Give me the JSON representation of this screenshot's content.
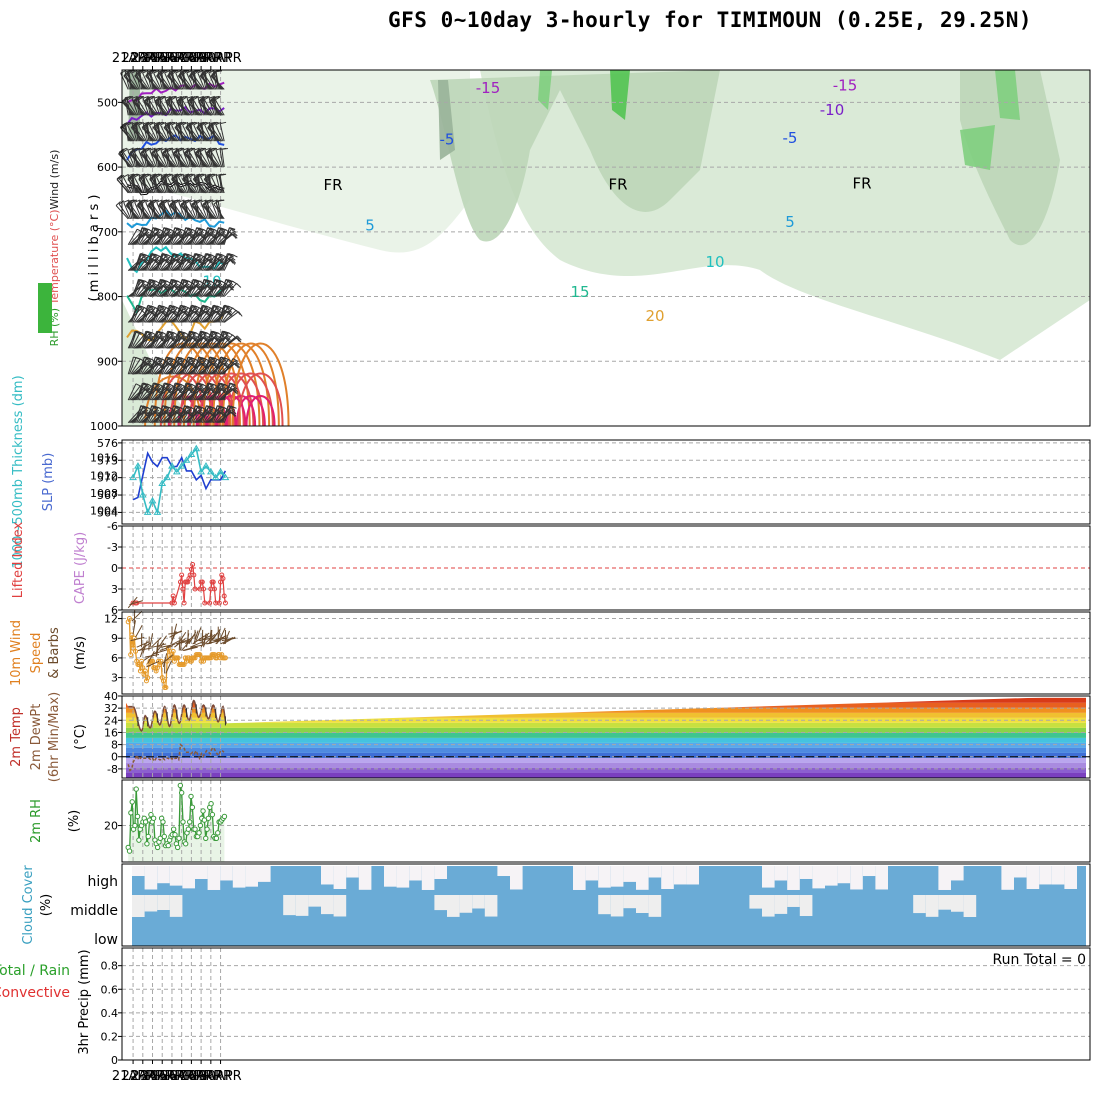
{
  "title": "GFS 0~10day 3-hourly for TIMIMOUN (0.25E, 29.25N)",
  "dates": [
    "21APR",
    "22APR",
    "23APR",
    "24APR",
    "25APR",
    "26APR",
    "27APR",
    "28APR",
    "29APR",
    "30APR"
  ],
  "colors": {
    "grid": "#a8a8a8",
    "rh_fill": "#d6e8d3",
    "rh_dark": "#99b399",
    "rh_bright": "#52c452",
    "slp": "#1f3fd0",
    "thickness": "#35bcc4",
    "lifted": "#e04040",
    "wind10": "#e59a2a",
    "wind_barb": "#6b4a2a",
    "dew": "#8a5a3a",
    "rh2m": "#3a9a3a",
    "cloud": "#6aabd6",
    "temp_line": "#7a4a3a"
  },
  "panel_labels": {
    "upper": {
      "wind": "Wind (m/s)",
      "temperature": "Temperature (°C)",
      "rh": "RH (%)",
      "pressure": "( m i l l i b a r s )"
    },
    "slp": {
      "thickness": "1000~500mb Thickness (dm)",
      "slp": "SLP (mb)"
    },
    "stability": {
      "lifted": "Lifted Index",
      "cape": "CAPE (J/kg)"
    },
    "wind10": {
      "a": "10m Wind",
      "b": "Speed",
      "c": "& Barbs",
      "unit": "(m/s)"
    },
    "temp2m": {
      "a": "2m Temp",
      "b": "2m DewPt",
      "c": "(6hr Min/Max)",
      "unit": "(°C)"
    },
    "rh2m": {
      "a": "2m RH",
      "unit": "(%)"
    },
    "cloud": {
      "a": "Cloud Cover",
      "unit": "(%)",
      "high": "high",
      "middle": "middle",
      "low": "low"
    },
    "precip": {
      "a": "Total / Rain",
      "b": "Convective",
      "c": "3hr Precip (mm)",
      "run_total": "Run Total = 0"
    }
  },
  "chart_data": [
    {
      "type": "heatmap",
      "name": "upper-air cross-section",
      "ylabel": "( m i l l i b a r s )",
      "y_ticks": [
        500,
        600,
        700,
        800,
        900,
        1000
      ],
      "ylim": [
        1000,
        450
      ],
      "x": [
        "21APR",
        "22APR",
        "23APR",
        "24APR",
        "25APR",
        "26APR",
        "27APR",
        "28APR",
        "29APR",
        "30APR"
      ],
      "freezing_label": "FR",
      "isotherms": [
        {
          "label": "-15",
          "color": "#a020c0",
          "p": [
            500,
            493,
            487,
            483,
            480,
            478,
            477,
            476,
            475,
            474,
            474
          ]
        },
        {
          "label": "-10",
          "color": "#7a20c8",
          "p": [
            530,
            525,
            520,
            517,
            515,
            513,
            512,
            512,
            513,
            512,
            512
          ]
        },
        {
          "label": "-5",
          "color": "#2050e0",
          "p": [
            585,
            575,
            565,
            560,
            557,
            555,
            555,
            555,
            556,
            556,
            565
          ]
        },
        {
          "label": "FR",
          "color": "#000000",
          "p": [
            628,
            635,
            640,
            627,
            628,
            627,
            624,
            626,
            630,
            632,
            630
          ]
        },
        {
          "label": "5",
          "color": "#1e9ad8",
          "p": [
            690,
            690,
            685,
            678,
            672,
            670,
            677,
            683,
            685,
            690,
            682
          ]
        },
        {
          "label": "10",
          "color": "#20c0c0",
          "p": [
            745,
            760,
            740,
            727,
            727,
            735,
            738,
            748,
            755,
            752,
            750
          ]
        },
        {
          "label": "15",
          "color": "#20b890",
          "p": [
            800,
            820,
            788,
            793,
            789,
            790,
            795,
            800,
            805,
            797,
            792
          ]
        },
        {
          "label": "20",
          "color": "#e0a030",
          "p": [
            860,
            850,
            870,
            860,
            835,
            845,
            870,
            838,
            845,
            840,
            830
          ]
        }
      ],
      "rh_levels": [
        10,
        30,
        50,
        70
      ]
    },
    {
      "type": "line",
      "name": "SLP and thickness",
      "x_hours": [
        0,
        12,
        24,
        36,
        48,
        60,
        72,
        84,
        96,
        108,
        120,
        132,
        144,
        156,
        168,
        180,
        192,
        204,
        216,
        228
      ],
      "series": [
        {
          "name": "SLP (mb)",
          "values": [
            1006.5,
            1007,
            1012,
            1017,
            1015,
            1014,
            1016,
            1016,
            1014,
            1014,
            1016,
            1013,
            1013,
            1011,
            1012,
            1009,
            1011,
            1011,
            1011,
            1013
          ]
        },
        {
          "name": "1000~500mb Thickness (dm)",
          "values": [
            570,
            572,
            567,
            564,
            566,
            564,
            569,
            570,
            572,
            571,
            572,
            573,
            574,
            575,
            571,
            572,
            571,
            570,
            571,
            570
          ]
        }
      ],
      "y_ticks_thickness": [
        564,
        567,
        570,
        573,
        576
      ],
      "y_ticks_slp": [
        1004,
        1008,
        1012,
        1016
      ]
    },
    {
      "type": "line",
      "name": "Lifted index",
      "y_ticks": [
        -6,
        -3,
        0,
        3,
        6
      ],
      "ylim": [
        -6,
        6
      ],
      "series": [
        {
          "name": "Lifted Index",
          "values_hours": [
            [
              0,
              5
            ],
            [
              6,
              5
            ],
            [
              9,
              5
            ],
            [
              96,
              5
            ],
            [
              99,
              4
            ],
            [
              102,
              5
            ],
            [
              117,
              2
            ],
            [
              120,
              1
            ],
            [
              123,
              3
            ],
            [
              126,
              5
            ],
            [
              129,
              2
            ],
            [
              132,
              2
            ],
            [
              135,
              2
            ],
            [
              138,
              1.5
            ],
            [
              141,
              1
            ],
            [
              144,
              0.2
            ],
            [
              147,
              -0.5
            ],
            [
              150,
              1
            ],
            [
              153,
              3
            ],
            [
              165,
              3
            ],
            [
              168,
              2
            ],
            [
              171,
              2
            ],
            [
              174,
              3
            ],
            [
              177,
              5
            ],
            [
              189,
              5
            ],
            [
              192,
              3
            ],
            [
              195,
              2
            ],
            [
              198,
              2
            ],
            [
              201,
              3
            ],
            [
              204,
              5
            ],
            [
              213,
              5
            ],
            [
              216,
              2
            ],
            [
              219,
              1
            ],
            [
              222,
              1.5
            ],
            [
              225,
              4
            ],
            [
              228,
              5
            ]
          ]
        }
      ]
    },
    {
      "type": "line",
      "name": "10m wind speed",
      "y_ticks": [
        3,
        6,
        9,
        12
      ],
      "ylim": [
        1,
        13
      ],
      "series": [
        {
          "name": "10m Wind Speed",
          "values": [
            11.5,
            12,
            6.5,
            9.5,
            7.5,
            9,
            7,
            5.5,
            5,
            5,
            4,
            5.5,
            4.5,
            3.5,
            4,
            2.5,
            3,
            5,
            5.5,
            5.5,
            5.5,
            4.5,
            4.5,
            4,
            4.5,
            5.5,
            5,
            5.5,
            3,
            2.5,
            1.5,
            1.5,
            5.5,
            7.5,
            7,
            6,
            6.5,
            7,
            5.5,
            6,
            6,
            6,
            5,
            5,
            5,
            5,
            5,
            6,
            5.5,
            6,
            6,
            5.5,
            5.5,
            6,
            6,
            6,
            6.5,
            6.5,
            6.5,
            6.5,
            5.5,
            6,
            5.5,
            6,
            6,
            6,
            6,
            6,
            6,
            6.5,
            6.5,
            6.5,
            6,
            6,
            6.5,
            6.5,
            6,
            6.5,
            6,
            6,
            6
          ]
        }
      ]
    },
    {
      "type": "area",
      "name": "2m temperature and dewpoint",
      "y_ticks": [
        -8,
        0,
        8,
        16,
        24,
        32,
        40
      ],
      "ylim": [
        -14,
        40
      ],
      "series": [
        {
          "name": "2m Temp",
          "values_peak_trough": [
            [
              0,
              33
            ],
            [
              21,
              17
            ],
            [
              30,
              27
            ],
            [
              42,
              19
            ],
            [
              54,
              30
            ],
            [
              66,
              21
            ],
            [
              78,
              33
            ],
            [
              90,
              20
            ],
            [
              102,
              34
            ],
            [
              114,
              22
            ],
            [
              126,
              34
            ],
            [
              138,
              24
            ],
            [
              150,
              37
            ],
            [
              162,
              26
            ],
            [
              174,
              34
            ],
            [
              186,
              25
            ],
            [
              198,
              34
            ],
            [
              210,
              23
            ],
            [
              222,
              33
            ],
            [
              230,
              22
            ]
          ]
        },
        {
          "name": "2m DewPt",
          "values": [
            -5,
            -9,
            -8,
            -3,
            -2,
            1,
            -2,
            -1,
            0,
            -1,
            -1,
            -1,
            -1,
            -2,
            -1,
            -3,
            -1,
            -1,
            -2,
            -2,
            -1,
            -2,
            -1,
            -1,
            -2,
            -1,
            -2,
            -1,
            -1,
            -2,
            8,
            7,
            6,
            3,
            3,
            3,
            2,
            3,
            2,
            4,
            1,
            -1,
            2,
            0,
            2,
            4,
            3,
            2,
            5,
            6,
            4,
            2,
            1,
            4,
            4,
            3
          ]
        }
      ]
    },
    {
      "type": "area",
      "name": "2m relative humidity",
      "y_ticks": [
        20
      ],
      "ylim": [
        0,
        45
      ],
      "series": [
        {
          "name": "2m RH",
          "values": [
            8,
            6,
            27,
            33,
            18,
            20,
            40,
            25,
            12,
            18,
            20,
            22,
            24,
            22,
            10,
            14,
            23,
            26,
            22,
            24,
            12,
            10,
            8,
            11,
            13,
            24,
            22,
            14,
            9,
            10,
            9,
            12,
            14,
            15,
            18,
            15,
            10,
            8,
            13,
            42,
            38,
            22,
            11,
            10,
            16,
            18,
            22,
            36,
            30,
            18,
            18,
            14,
            14,
            16,
            20,
            24,
            28,
            23,
            13,
            18,
            24,
            30,
            32,
            26,
            14,
            13,
            13,
            16,
            22,
            22,
            23,
            24,
            25
          ]
        }
      ]
    },
    {
      "type": "heatmap",
      "name": "cloud cover",
      "rows": [
        "high",
        "middle",
        "low"
      ]
    },
    {
      "type": "bar",
      "name": "3hr precipitation",
      "y_ticks": [
        0,
        0.2,
        0.4,
        0.6,
        0.8
      ],
      "ylim": [
        0,
        0.95
      ],
      "values": []
    }
  ]
}
